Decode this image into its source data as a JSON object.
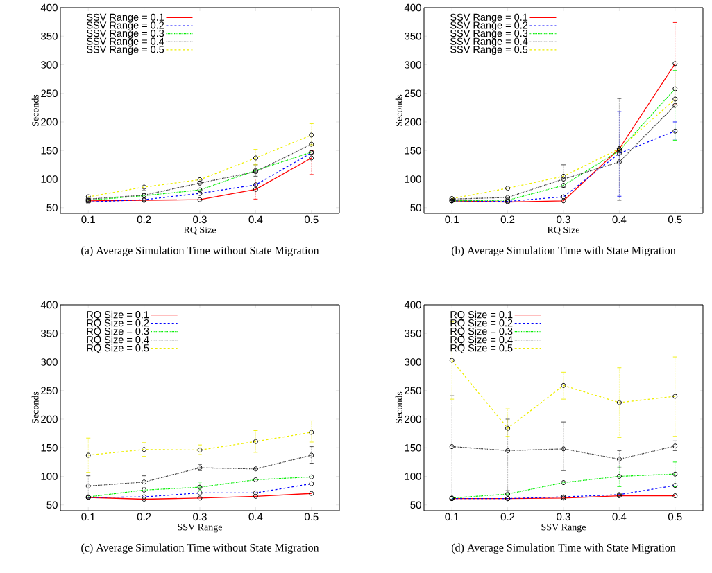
{
  "chart_data": [
    {
      "type": "line",
      "title": "(a) Average Simulation Time without State Migration",
      "xlabel": "RQ Size",
      "ylabel": "Seconds",
      "x": [
        0.1,
        0.2,
        0.3,
        0.4,
        0.5
      ],
      "xlim": [
        0.05,
        0.55
      ],
      "xticks": [
        0.1,
        0.2,
        0.3,
        0.4,
        0.5
      ],
      "ylim": [
        40,
        400
      ],
      "yticks": [
        50,
        100,
        150,
        200,
        250,
        300,
        350,
        400
      ],
      "legend": "top left",
      "marker": "circle",
      "series": [
        {
          "name": "SSV Range = 0.1",
          "color": "#ff0000",
          "line_style": "solid",
          "values": [
            62,
            63,
            64,
            82,
            137
          ],
          "errors": [
            null,
            null,
            null,
            [
              65,
              100
            ],
            [
              108,
              150
            ]
          ]
        },
        {
          "name": "SSV Range = 0.2",
          "color": "#0000ff",
          "line_style": "dashed",
          "values": [
            60,
            64,
            75,
            90,
            146
          ]
        },
        {
          "name": "SSV Range = 0.3",
          "color": "#00ee00",
          "line_style": "dotted",
          "values": [
            63,
            71,
            81,
            115,
            147
          ]
        },
        {
          "name": "SSV Range = 0.4",
          "color": "#404040",
          "line_style": "dotted",
          "values": [
            65,
            72,
            93,
            113,
            161
          ],
          "errors": [
            null,
            [
              62,
              80
            ],
            null,
            [
              105,
              125
            ],
            null
          ]
        },
        {
          "name": "SSV Range = 0.5",
          "color": "#eeee00",
          "line_style": "dashed",
          "values": [
            69,
            86,
            99,
            137,
            177
          ],
          "errors": [
            null,
            null,
            null,
            [
              125,
              152
            ],
            [
              160,
              197
            ]
          ]
        }
      ]
    },
    {
      "type": "line",
      "title": "(b) Average Simulation Time with State Migration",
      "xlabel": "RQ Size",
      "ylabel": "Seconds",
      "x": [
        0.1,
        0.2,
        0.3,
        0.4,
        0.5
      ],
      "xlim": [
        0.05,
        0.55
      ],
      "xticks": [
        0.1,
        0.2,
        0.3,
        0.4,
        0.5
      ],
      "ylim": [
        40,
        400
      ],
      "yticks": [
        50,
        100,
        150,
        200,
        250,
        300,
        350,
        400
      ],
      "legend": "top left",
      "marker": "circle",
      "series": [
        {
          "name": "SSV Range = 0.1",
          "color": "#ff0000",
          "line_style": "solid",
          "values": [
            62,
            60,
            62,
            153,
            302
          ],
          "errors": [
            null,
            null,
            null,
            null,
            [
              230,
              374
            ]
          ]
        },
        {
          "name": "SSV Range = 0.2",
          "color": "#0000ff",
          "line_style": "dashed",
          "values": [
            62,
            61,
            69,
            145,
            184
          ],
          "errors": [
            null,
            null,
            null,
            [
              70,
              218
            ],
            [
              170,
              200
            ]
          ]
        },
        {
          "name": "SSV Range = 0.3",
          "color": "#00ee00",
          "line_style": "dotted",
          "values": [
            62,
            63,
            89,
            150,
            258
          ],
          "errors": [
            null,
            null,
            null,
            null,
            [
              168,
              290
            ]
          ]
        },
        {
          "name": "SSV Range = 0.4",
          "color": "#404040",
          "line_style": "dotted",
          "values": [
            65,
            68,
            100,
            130,
            229
          ],
          "errors": [
            null,
            null,
            [
              85,
              125
            ],
            [
              63,
              241
            ],
            null
          ]
        },
        {
          "name": "SSV Range = 0.5",
          "color": "#eeee00",
          "line_style": "dashed",
          "values": [
            66,
            84,
            105,
            153,
            240
          ]
        }
      ]
    },
    {
      "type": "line",
      "title": "(c) Average Simulation Time without State Migration",
      "xlabel": "SSV Range",
      "ylabel": "Seconds",
      "x": [
        0.1,
        0.2,
        0.3,
        0.4,
        0.5
      ],
      "xlim": [
        0.05,
        0.55
      ],
      "xticks": [
        0.1,
        0.2,
        0.3,
        0.4,
        0.5
      ],
      "ylim": [
        40,
        400
      ],
      "yticks": [
        50,
        100,
        150,
        200,
        250,
        300,
        350,
        400
      ],
      "legend": "top left",
      "marker": "circle",
      "series": [
        {
          "name": "RQ Size = 0.1",
          "color": "#ff0000",
          "line_style": "solid",
          "values": [
            63,
            60,
            62,
            65,
            70
          ]
        },
        {
          "name": "RQ Size = 0.2",
          "color": "#0000ff",
          "line_style": "dashed",
          "values": [
            63,
            64,
            71,
            71,
            87
          ]
        },
        {
          "name": "RQ Size = 0.3",
          "color": "#00ee00",
          "line_style": "dotted",
          "values": [
            64,
            76,
            81,
            94,
            99
          ],
          "errors": [
            null,
            null,
            [
              75,
              90
            ],
            null,
            null
          ]
        },
        {
          "name": "RQ Size = 0.4",
          "color": "#404040",
          "line_style": "dotted",
          "values": [
            83,
            90,
            115,
            113,
            137
          ],
          "errors": [
            [
              62,
              101
            ],
            [
              80,
              101
            ],
            [
              110,
              121
            ],
            null,
            [
              123,
              152
            ]
          ]
        },
        {
          "name": "RQ Size = 0.5",
          "color": "#eeee00",
          "line_style": "dashed",
          "values": [
            137,
            147,
            146,
            161,
            177
          ],
          "errors": [
            [
              107,
              167
            ],
            [
              135,
              159
            ],
            [
              138,
              155
            ],
            [
              142,
              180
            ],
            [
              160,
              197
            ]
          ]
        }
      ]
    },
    {
      "type": "line",
      "title": "(d) Average Simulation Time with State Migration",
      "xlabel": "SSV Range",
      "ylabel": "Seconds",
      "x": [
        0.1,
        0.2,
        0.3,
        0.4,
        0.5
      ],
      "xlim": [
        0.05,
        0.55
      ],
      "xticks": [
        0.1,
        0.2,
        0.3,
        0.4,
        0.5
      ],
      "ylim": [
        40,
        400
      ],
      "yticks": [
        50,
        100,
        150,
        200,
        250,
        300,
        350,
        400
      ],
      "legend": "top left",
      "marker": "circle",
      "series": [
        {
          "name": "RQ Size = 0.1",
          "color": "#ff0000",
          "line_style": "solid",
          "values": [
            61,
            61,
            62,
            66,
            66
          ]
        },
        {
          "name": "RQ Size = 0.2",
          "color": "#0000ff",
          "line_style": "dashed",
          "values": [
            61,
            61,
            64,
            68,
            84
          ]
        },
        {
          "name": "RQ Size = 0.3",
          "color": "#00ee00",
          "line_style": "dotted",
          "values": [
            62,
            69,
            89,
            100,
            104
          ],
          "errors": [
            null,
            null,
            null,
            [
              82,
              118
            ],
            [
              82,
              125
            ]
          ]
        },
        {
          "name": "RQ Size = 0.4",
          "color": "#404040",
          "line_style": "dotted",
          "values": [
            152,
            145,
            148,
            130,
            153
          ],
          "errors": [
            [
              60,
              241
            ],
            [
              75,
              200
            ],
            [
              110,
              195
            ],
            [
              115,
              145
            ],
            [
              145,
              162
            ]
          ]
        },
        {
          "name": "RQ Size = 0.5",
          "color": "#eeee00",
          "line_style": "dashed",
          "values": [
            303,
            184,
            259,
            229,
            240
          ],
          "errors": [
            [
              235,
              370
            ],
            [
              170,
              218
            ],
            [
              235,
              282
            ],
            [
              168,
              290
            ],
            [
              170,
              309
            ]
          ]
        }
      ]
    }
  ]
}
